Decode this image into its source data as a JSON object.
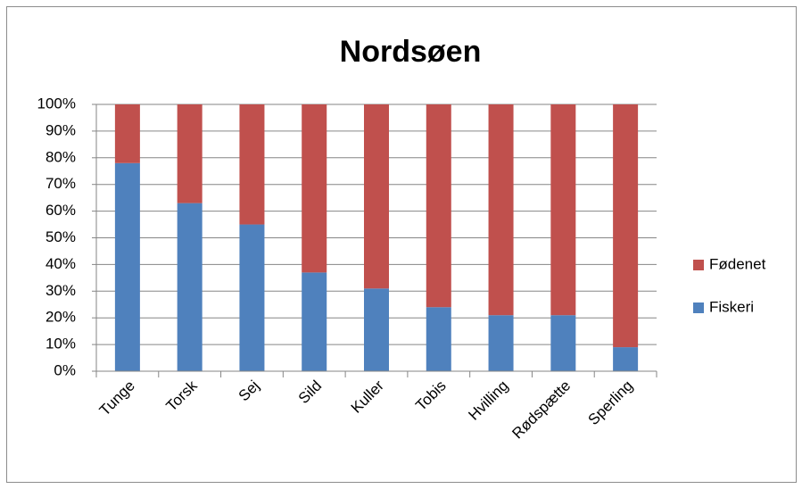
{
  "chart_data": {
    "type": "stacked_bar",
    "title": "Nordsøen",
    "categories": [
      "Tunge",
      "Torsk",
      "Sej",
      "Sild",
      "Kuller",
      "Tobis",
      "Hvilling",
      "Rødspætte",
      "Sperling"
    ],
    "series": [
      {
        "name": "Fiskeri",
        "color": "#4f81bd",
        "values": [
          78,
          63,
          55,
          37,
          31,
          24,
          21,
          21,
          9
        ]
      },
      {
        "name": "Fødenet",
        "color": "#c0504d",
        "values": [
          22,
          37,
          45,
          63,
          69,
          76,
          79,
          79,
          91
        ]
      }
    ],
    "ylim": [
      0,
      100
    ],
    "yticks": [
      {
        "value": 0,
        "label": "0%"
      },
      {
        "value": 10,
        "label": "10%"
      },
      {
        "value": 20,
        "label": "20%"
      },
      {
        "value": 30,
        "label": "30%"
      },
      {
        "value": 40,
        "label": "40%"
      },
      {
        "value": 50,
        "label": "50%"
      },
      {
        "value": 60,
        "label": "60%"
      },
      {
        "value": 70,
        "label": "70%"
      },
      {
        "value": 80,
        "label": "80%"
      },
      {
        "value": 90,
        "label": "90%"
      },
      {
        "value": 100,
        "label": "100%"
      }
    ],
    "grid": true,
    "legend": "right"
  }
}
